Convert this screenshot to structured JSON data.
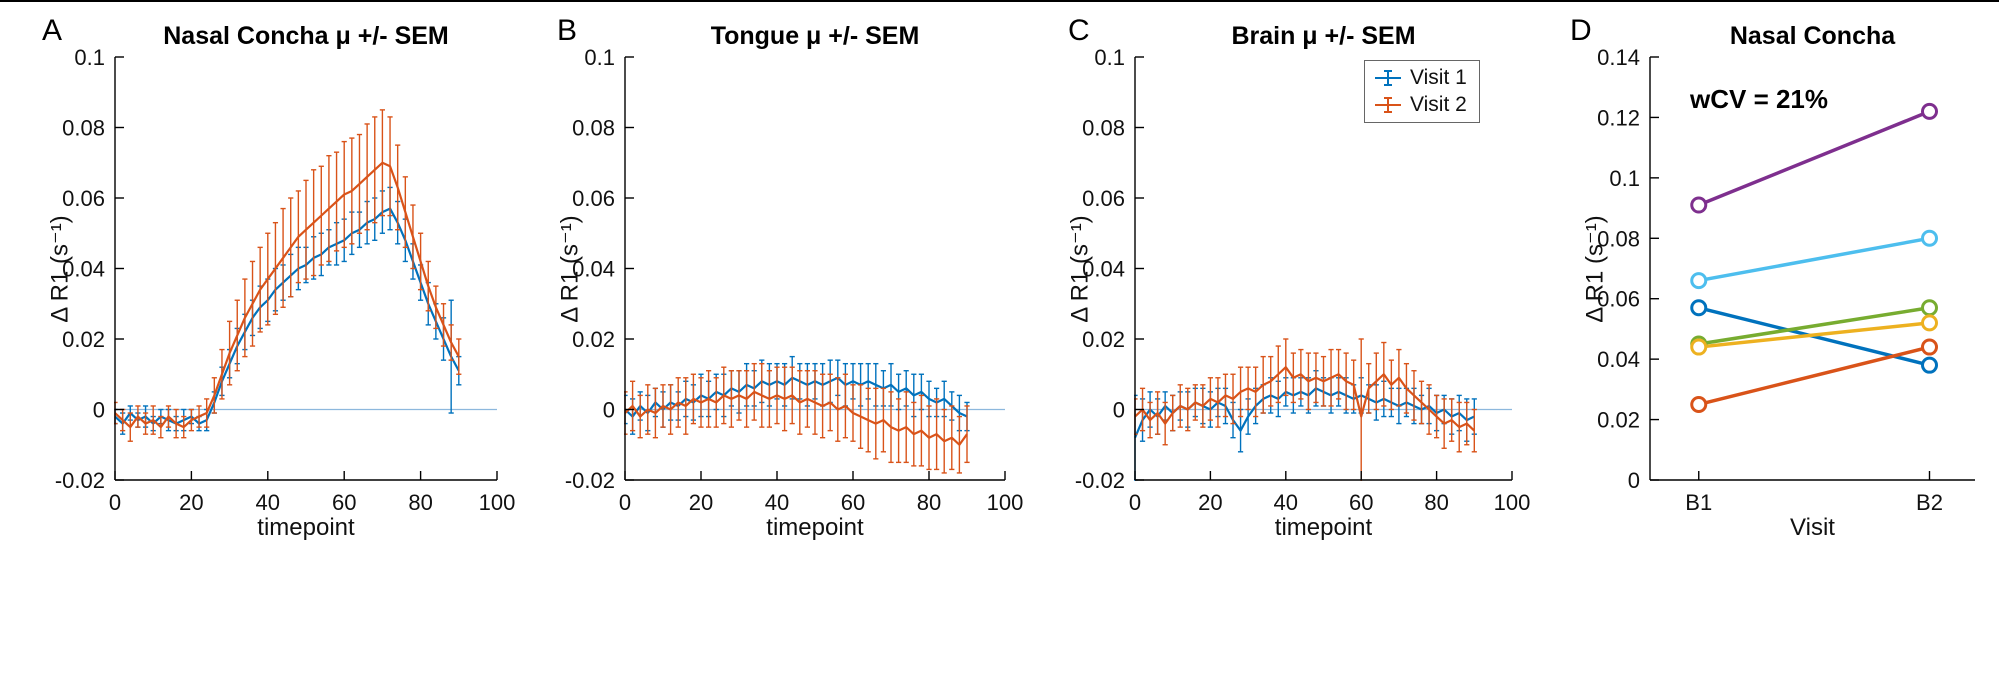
{
  "figure": {
    "background": "#ffffff",
    "axis_color": "#000000",
    "top_border_color": "#000000"
  },
  "panels": [
    {
      "letter": "A"
    },
    {
      "letter": "B"
    },
    {
      "letter": "C"
    },
    {
      "letter": "D"
    }
  ],
  "chart_data": [
    {
      "type": "line",
      "title": "Nasal Concha μ +/- SEM",
      "xlabel": "timepoint",
      "ylabel": "Δ R1 (s⁻¹)",
      "xlim": [
        0,
        100
      ],
      "ylim": [
        -0.02,
        0.1
      ],
      "xticks": [
        0,
        20,
        40,
        60,
        80,
        100
      ],
      "xtick_labels": [
        "0",
        "20",
        "40",
        "60",
        "80",
        "100"
      ],
      "yticks": [
        -0.02,
        0,
        0.02,
        0.04,
        0.06,
        0.08,
        0.1
      ],
      "ytick_labels": [
        "-0.02",
        "0",
        "0.02",
        "0.04",
        "0.06",
        "0.08",
        "0.1"
      ],
      "zero_line": true,
      "zero_line_color": "#8db8dd",
      "x": [
        0,
        2,
        4,
        6,
        8,
        10,
        12,
        14,
        16,
        18,
        20,
        22,
        24,
        26,
        28,
        30,
        32,
        34,
        36,
        38,
        40,
        42,
        44,
        46,
        48,
        50,
        52,
        54,
        56,
        58,
        60,
        62,
        64,
        66,
        68,
        70,
        72,
        74,
        76,
        78,
        80,
        82,
        84,
        86,
        88,
        90
      ],
      "series": [
        {
          "name": "Visit 1",
          "color": "#0072BD",
          "mean": [
            -0.002,
            -0.004,
            -0.001,
            -0.003,
            -0.002,
            -0.004,
            -0.002,
            -0.003,
            -0.004,
            -0.003,
            -0.002,
            -0.004,
            -0.003,
            0.002,
            0.008,
            0.013,
            0.018,
            0.022,
            0.026,
            0.029,
            0.031,
            0.034,
            0.036,
            0.038,
            0.04,
            0.041,
            0.043,
            0.044,
            0.046,
            0.047,
            0.048,
            0.05,
            0.051,
            0.053,
            0.054,
            0.056,
            0.057,
            0.053,
            0.048,
            0.042,
            0.036,
            0.03,
            0.025,
            0.02,
            0.015,
            0.011
          ],
          "sem": [
            0.002,
            0.003,
            0.002,
            0.002,
            0.003,
            0.002,
            0.002,
            0.003,
            0.002,
            0.003,
            0.002,
            0.002,
            0.003,
            0.003,
            0.004,
            0.004,
            0.005,
            0.005,
            0.005,
            0.006,
            0.006,
            0.006,
            0.005,
            0.006,
            0.006,
            0.005,
            0.006,
            0.006,
            0.005,
            0.006,
            0.006,
            0.006,
            0.005,
            0.006,
            0.006,
            0.006,
            0.006,
            0.006,
            0.006,
            0.005,
            0.005,
            0.006,
            0.005,
            0.006,
            0.016,
            0.004
          ]
        },
        {
          "name": "Visit 2",
          "color": "#D95319",
          "mean": [
            -0.001,
            -0.003,
            -0.005,
            -0.002,
            -0.004,
            -0.003,
            -0.005,
            -0.002,
            -0.004,
            -0.005,
            -0.003,
            -0.002,
            -0.001,
            0.004,
            0.01,
            0.016,
            0.021,
            0.026,
            0.03,
            0.034,
            0.037,
            0.04,
            0.043,
            0.046,
            0.049,
            0.051,
            0.053,
            0.055,
            0.057,
            0.059,
            0.061,
            0.062,
            0.064,
            0.066,
            0.068,
            0.07,
            0.069,
            0.063,
            0.056,
            0.049,
            0.042,
            0.035,
            0.029,
            0.024,
            0.019,
            0.015
          ],
          "sem": [
            0.003,
            0.003,
            0.004,
            0.003,
            0.003,
            0.004,
            0.003,
            0.003,
            0.004,
            0.003,
            0.003,
            0.003,
            0.004,
            0.005,
            0.007,
            0.009,
            0.01,
            0.011,
            0.012,
            0.012,
            0.013,
            0.013,
            0.014,
            0.014,
            0.013,
            0.014,
            0.015,
            0.014,
            0.015,
            0.014,
            0.015,
            0.015,
            0.014,
            0.015,
            0.015,
            0.015,
            0.014,
            0.012,
            0.01,
            0.009,
            0.008,
            0.007,
            0.006,
            0.006,
            0.005,
            0.005
          ]
        }
      ]
    },
    {
      "type": "line",
      "title": "Tongue μ +/- SEM",
      "xlabel": "timepoint",
      "ylabel": "Δ R1 (s⁻¹)",
      "xlim": [
        0,
        100
      ],
      "ylim": [
        -0.02,
        0.1
      ],
      "xticks": [
        0,
        20,
        40,
        60,
        80,
        100
      ],
      "xtick_labels": [
        "0",
        "20",
        "40",
        "60",
        "80",
        "100"
      ],
      "yticks": [
        -0.02,
        0,
        0.02,
        0.04,
        0.06,
        0.08,
        0.1
      ],
      "ytick_labels": [
        "-0.02",
        "0",
        "0.02",
        "0.04",
        "0.06",
        "0.08",
        "0.1"
      ],
      "zero_line": true,
      "zero_line_color": "#8db8dd",
      "x": [
        0,
        2,
        4,
        6,
        8,
        10,
        12,
        14,
        16,
        18,
        20,
        22,
        24,
        26,
        28,
        30,
        32,
        34,
        36,
        38,
        40,
        42,
        44,
        46,
        48,
        50,
        52,
        54,
        56,
        58,
        60,
        62,
        64,
        66,
        68,
        70,
        72,
        74,
        76,
        78,
        80,
        82,
        84,
        86,
        88,
        90
      ],
      "series": [
        {
          "name": "Visit 1",
          "color": "#0072BD",
          "mean": [
            0.0,
            -0.002,
            0.001,
            -0.001,
            0.002,
            0.0,
            0.002,
            0.001,
            0.003,
            0.002,
            0.004,
            0.003,
            0.005,
            0.004,
            0.006,
            0.005,
            0.007,
            0.006,
            0.008,
            0.007,
            0.008,
            0.007,
            0.009,
            0.008,
            0.007,
            0.008,
            0.007,
            0.008,
            0.009,
            0.007,
            0.008,
            0.007,
            0.008,
            0.007,
            0.006,
            0.007,
            0.005,
            0.006,
            0.004,
            0.005,
            0.003,
            0.002,
            0.003,
            0.001,
            -0.001,
            -0.002
          ],
          "sem": [
            0.004,
            0.005,
            0.004,
            0.005,
            0.004,
            0.005,
            0.005,
            0.004,
            0.005,
            0.005,
            0.006,
            0.005,
            0.005,
            0.006,
            0.005,
            0.006,
            0.006,
            0.005,
            0.006,
            0.006,
            0.005,
            0.006,
            0.006,
            0.005,
            0.006,
            0.005,
            0.006,
            0.006,
            0.005,
            0.006,
            0.005,
            0.006,
            0.005,
            0.006,
            0.005,
            0.006,
            0.005,
            0.005,
            0.006,
            0.005,
            0.005,
            0.004,
            0.005,
            0.004,
            0.005,
            0.004
          ]
        },
        {
          "name": "Visit 2",
          "color": "#D95319",
          "mean": [
            -0.001,
            0.001,
            -0.002,
            0.0,
            -0.001,
            0.001,
            0.0,
            0.002,
            0.001,
            0.003,
            0.002,
            0.003,
            0.002,
            0.004,
            0.003,
            0.004,
            0.003,
            0.005,
            0.004,
            0.003,
            0.004,
            0.003,
            0.004,
            0.002,
            0.003,
            0.002,
            0.001,
            0.002,
            0.0,
            0.001,
            -0.001,
            -0.002,
            -0.003,
            -0.004,
            -0.003,
            -0.005,
            -0.006,
            -0.005,
            -0.007,
            -0.006,
            -0.008,
            -0.007,
            -0.009,
            -0.008,
            -0.01,
            -0.007
          ],
          "sem": [
            0.006,
            0.007,
            0.006,
            0.007,
            0.007,
            0.006,
            0.007,
            0.007,
            0.008,
            0.007,
            0.007,
            0.008,
            0.007,
            0.008,
            0.008,
            0.007,
            0.008,
            0.008,
            0.009,
            0.008,
            0.008,
            0.009,
            0.008,
            0.009,
            0.008,
            0.009,
            0.009,
            0.008,
            0.009,
            0.009,
            0.008,
            0.009,
            0.009,
            0.01,
            0.009,
            0.01,
            0.009,
            0.01,
            0.009,
            0.01,
            0.009,
            0.01,
            0.009,
            0.009,
            0.008,
            0.008
          ]
        }
      ]
    },
    {
      "type": "line",
      "title": "Brain μ +/- SEM",
      "xlabel": "timepoint",
      "ylabel": "Δ R1 (s⁻¹)",
      "xlim": [
        0,
        100
      ],
      "ylim": [
        -0.02,
        0.1
      ],
      "xticks": [
        0,
        20,
        40,
        60,
        80,
        100
      ],
      "xtick_labels": [
        "0",
        "20",
        "40",
        "60",
        "80",
        "100"
      ],
      "yticks": [
        -0.02,
        0,
        0.02,
        0.04,
        0.06,
        0.08,
        0.1
      ],
      "ytick_labels": [
        "-0.02",
        "0",
        "0.02",
        "0.04",
        "0.06",
        "0.08",
        "0.1"
      ],
      "zero_line": true,
      "zero_line_color": "#8db8dd",
      "legend": {
        "position": "top-right",
        "items": [
          {
            "label": "Visit 1",
            "color": "#0072BD"
          },
          {
            "label": "Visit 2",
            "color": "#D95319"
          }
        ]
      },
      "x": [
        0,
        2,
        4,
        6,
        8,
        10,
        12,
        14,
        16,
        18,
        20,
        22,
        24,
        26,
        28,
        30,
        32,
        34,
        36,
        38,
        40,
        42,
        44,
        46,
        48,
        50,
        52,
        54,
        56,
        58,
        60,
        62,
        64,
        66,
        68,
        70,
        72,
        74,
        76,
        78,
        80,
        82,
        84,
        86,
        88,
        90
      ],
      "series": [
        {
          "name": "Visit 1",
          "color": "#0072BD",
          "mean": [
            -0.008,
            -0.003,
            0.0,
            -0.002,
            0.001,
            -0.001,
            0.001,
            0.0,
            0.002,
            0.001,
            0.0,
            0.002,
            0.001,
            -0.003,
            -0.006,
            -0.002,
            0.001,
            0.003,
            0.004,
            0.003,
            0.005,
            0.004,
            0.005,
            0.004,
            0.006,
            0.005,
            0.004,
            0.005,
            0.004,
            0.003,
            0.004,
            0.003,
            0.002,
            0.003,
            0.002,
            0.001,
            0.002,
            0.001,
            0.0,
            0.001,
            -0.001,
            0.0,
            -0.002,
            -0.001,
            -0.003,
            -0.002
          ],
          "sem": [
            0.012,
            0.006,
            0.005,
            0.005,
            0.004,
            0.005,
            0.004,
            0.005,
            0.004,
            0.005,
            0.005,
            0.004,
            0.005,
            0.005,
            0.006,
            0.005,
            0.005,
            0.004,
            0.005,
            0.005,
            0.004,
            0.005,
            0.004,
            0.005,
            0.005,
            0.004,
            0.005,
            0.004,
            0.005,
            0.004,
            0.005,
            0.004,
            0.005,
            0.005,
            0.004,
            0.005,
            0.004,
            0.005,
            0.004,
            0.005,
            0.005,
            0.004,
            0.005,
            0.005,
            0.006,
            0.005
          ]
        },
        {
          "name": "Visit 2",
          "color": "#D95319",
          "mean": [
            -0.002,
            0.0,
            -0.003,
            -0.001,
            -0.004,
            -0.001,
            0.001,
            0.0,
            0.002,
            0.001,
            0.003,
            0.002,
            0.004,
            0.003,
            0.005,
            0.006,
            0.005,
            0.007,
            0.008,
            0.01,
            0.012,
            0.009,
            0.01,
            0.008,
            0.009,
            0.008,
            0.009,
            0.01,
            0.008,
            0.007,
            -0.002,
            0.006,
            0.008,
            0.01,
            0.007,
            0.009,
            0.006,
            0.004,
            0.002,
            0.0,
            -0.002,
            -0.004,
            -0.003,
            -0.005,
            -0.004,
            -0.006
          ],
          "sem": [
            0.005,
            0.006,
            0.005,
            0.006,
            0.006,
            0.005,
            0.006,
            0.006,
            0.005,
            0.006,
            0.006,
            0.007,
            0.006,
            0.007,
            0.007,
            0.006,
            0.007,
            0.008,
            0.007,
            0.008,
            0.008,
            0.007,
            0.007,
            0.008,
            0.007,
            0.007,
            0.008,
            0.007,
            0.008,
            0.007,
            0.022,
            0.007,
            0.008,
            0.009,
            0.007,
            0.008,
            0.007,
            0.007,
            0.006,
            0.007,
            0.006,
            0.007,
            0.006,
            0.007,
            0.006,
            0.006
          ]
        }
      ]
    },
    {
      "type": "paired-line",
      "title": "Nasal Concha",
      "xlabel": "Visit",
      "ylabel": "Δ R1 (s⁻¹)",
      "annotation": "wCV = 21%",
      "categories": [
        "B1",
        "B2"
      ],
      "ylim": [
        0,
        0.14
      ],
      "yticks": [
        0,
        0.02,
        0.04,
        0.06,
        0.08,
        0.1,
        0.12,
        0.14
      ],
      "ytick_labels": [
        "0",
        "0.02",
        "0.04",
        "0.06",
        "0.08",
        "0.1",
        "0.12",
        "0.14"
      ],
      "subjects": [
        {
          "color": "#7E2F8E",
          "values": [
            0.091,
            0.122
          ]
        },
        {
          "color": "#4DBEEE",
          "values": [
            0.066,
            0.08
          ]
        },
        {
          "color": "#0072BD",
          "values": [
            0.057,
            0.038
          ]
        },
        {
          "color": "#77AC30",
          "values": [
            0.045,
            0.057
          ]
        },
        {
          "color": "#EDB120",
          "values": [
            0.044,
            0.052
          ]
        },
        {
          "color": "#D95319",
          "values": [
            0.025,
            0.044
          ]
        }
      ]
    }
  ]
}
